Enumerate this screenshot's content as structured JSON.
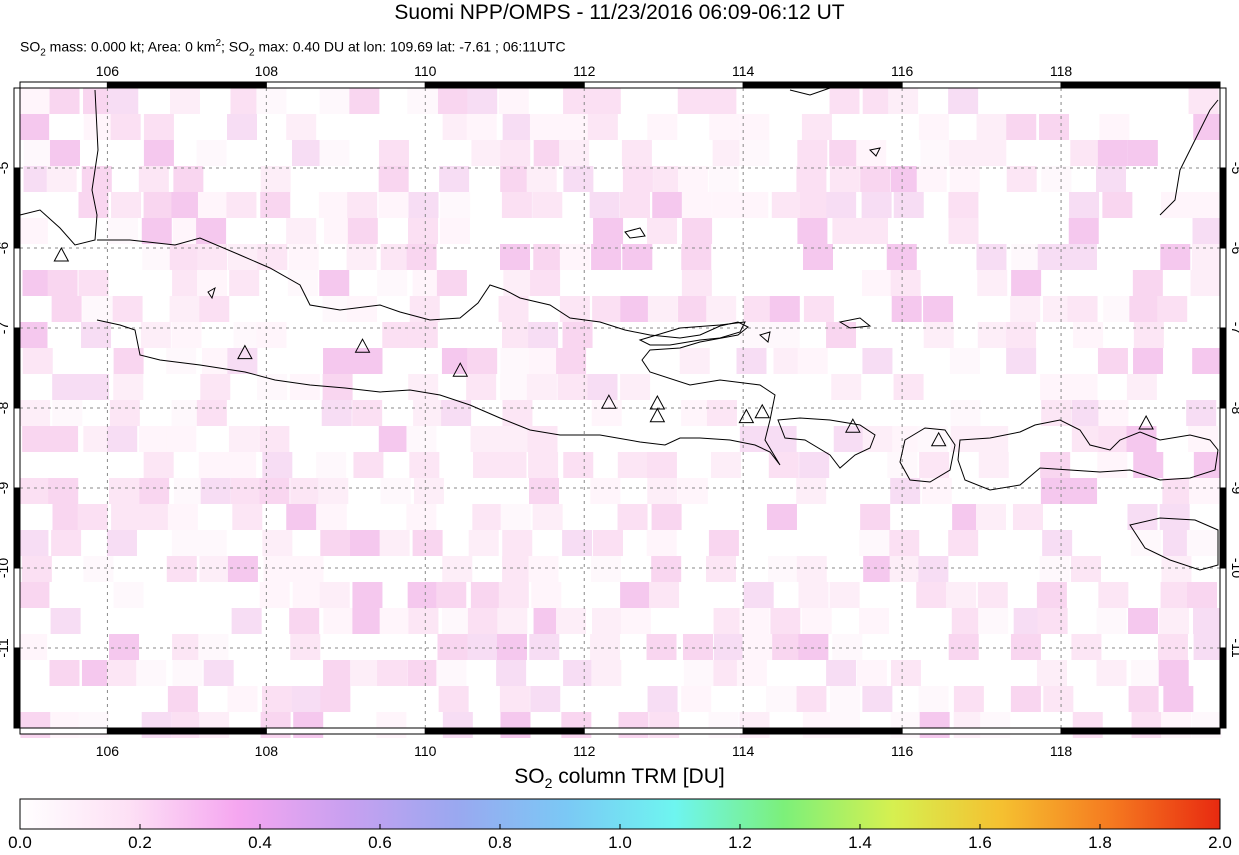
{
  "title": "Suomi NPP/OMPS - 11/23/2016 06:09-06:12 UT",
  "subtitle": {
    "so2_mass_label": "SO",
    "so2_mass_text": " mass: 0.000 kt; Area: 0 km",
    "area_sup": "2",
    "so2_max_label": "; SO",
    "so2_max_text": " max: 0.40 DU at lon: 109.69 lat: -7.61 ; 06:11UTC",
    "sub": "2"
  },
  "map": {
    "lon_range": [
      104.9,
      120.0
    ],
    "lat_range": [
      -12.0,
      -4.0
    ],
    "lon_ticks": [
      "106",
      "108",
      "110",
      "112",
      "114",
      "116",
      "118"
    ],
    "lon_tick_values": [
      106,
      108,
      110,
      112,
      114,
      116,
      118
    ],
    "lat_ticks": [
      "-5",
      "-6",
      "-7",
      "-8",
      "-9",
      "-10",
      "-11"
    ],
    "lat_tick_values": [
      -5,
      -6,
      -7,
      -8,
      -9,
      -10,
      -11
    ],
    "volcanoes": [
      {
        "lon": 105.42,
        "lat": -6.1
      },
      {
        "lon": 107.73,
        "lat": -7.32
      },
      {
        "lon": 109.21,
        "lat": -7.24
      },
      {
        "lon": 110.44,
        "lat": -7.54
      },
      {
        "lon": 112.31,
        "lat": -7.94
      },
      {
        "lon": 112.92,
        "lat": -7.95
      },
      {
        "lon": 112.92,
        "lat": -8.11
      },
      {
        "lon": 114.04,
        "lat": -8.12
      },
      {
        "lon": 114.24,
        "lat": -8.06
      },
      {
        "lon": 115.38,
        "lat": -8.24
      },
      {
        "lon": 116.46,
        "lat": -8.41
      },
      {
        "lon": 119.07,
        "lat": -8.2
      }
    ]
  },
  "colorbar": {
    "title_main": "SO",
    "title_sub": "2",
    "title_rest": " column TRM [DU]",
    "ticks": [
      "0.0",
      "0.2",
      "0.4",
      "0.6",
      "0.8",
      "1.0",
      "1.2",
      "1.4",
      "1.6",
      "1.8",
      "2.0"
    ],
    "tick_values": [
      0.0,
      0.2,
      0.4,
      0.6,
      0.8,
      1.0,
      1.2,
      1.4,
      1.6,
      1.8,
      2.0
    ],
    "colors": [
      "#ffffff",
      "#fde0f5",
      "#f5a6f0",
      "#c8a0f0",
      "#9aa8f0",
      "#7bc8f5",
      "#6ef5f0",
      "#7cf07a",
      "#d6f050",
      "#f5c030",
      "#f57a20",
      "#e82a10"
    ]
  }
}
